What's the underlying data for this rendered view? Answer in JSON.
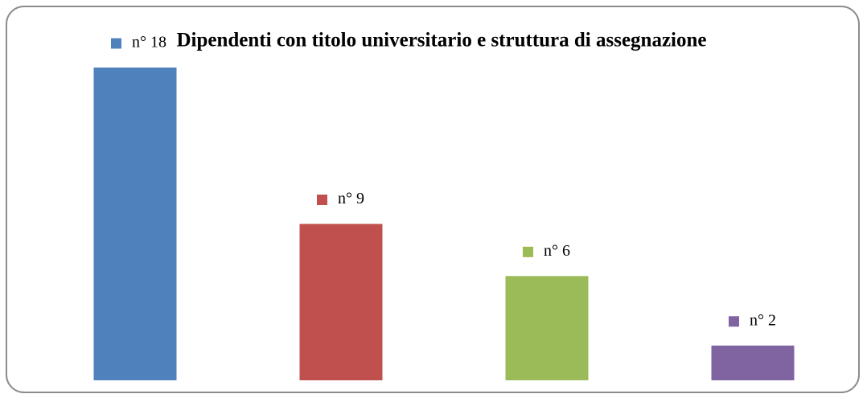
{
  "chart_data": {
    "type": "bar",
    "title": "Dipendenti con titolo universitario e struttura di assegnazione",
    "categories": [
      null,
      null,
      null,
      null
    ],
    "values": [
      18,
      9,
      6,
      2
    ],
    "value_labels": [
      "n° 18",
      "n° 9",
      "n° 6",
      "n° 2"
    ],
    "colors": [
      "#4f81bd",
      "#c0504d",
      "#9bbb59",
      "#8064a2"
    ],
    "ylim": [
      0,
      18
    ]
  }
}
